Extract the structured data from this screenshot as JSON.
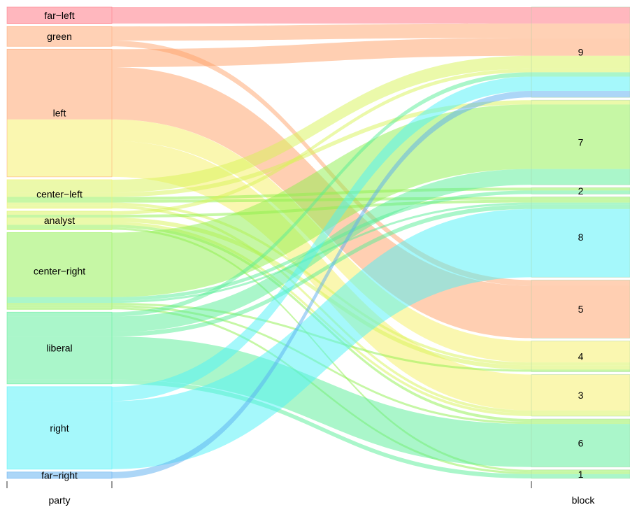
{
  "chart_data": {
    "type": "alluvial",
    "axes": [
      {
        "name": "party",
        "label": "party"
      },
      {
        "name": "block",
        "label": "block"
      }
    ],
    "party_order": [
      "far-left",
      "green",
      "left",
      "center-left",
      "analyst",
      "center-right",
      "liberal",
      "right",
      "far-right"
    ],
    "block_order": [
      "9",
      "7",
      "2",
      "8",
      "5",
      "4",
      "3",
      "6",
      "1"
    ],
    "colors": {
      "far-left": "#ff6f7d",
      "green": "#ffa36c",
      "left": "#ff9f65",
      "center-left": "#f6f062",
      "analyst": "#d7f456",
      "center-right": "#8eef4c",
      "liberal": "#55ed95",
      "right": "#4cf1f8",
      "far-right": "#5aaef0"
    },
    "flows": [
      {
        "party": "far-left",
        "block": "9",
        "value": 2.3,
        "color_group": "far-left"
      },
      {
        "party": "green",
        "block": "9",
        "value": 2.0,
        "color_group": "green"
      },
      {
        "party": "green",
        "block": "5",
        "value": 0.8,
        "color_group": "green"
      },
      {
        "party": "left",
        "block": "9",
        "value": 2.5,
        "color_group": "left"
      },
      {
        "party": "left",
        "block": "5",
        "value": 7.3,
        "color_group": "left"
      },
      {
        "party": "left",
        "block": "4",
        "value": 3.0,
        "color_group": "center-left"
      },
      {
        "party": "left",
        "block": "3",
        "value": 5.0,
        "color_group": "center-left"
      },
      {
        "party": "center-left",
        "block": "9",
        "value": 1.8,
        "color_group": "analyst"
      },
      {
        "party": "center-left",
        "block": "7",
        "value": 0.6,
        "color_group": "analyst"
      },
      {
        "party": "center-left",
        "block": "2",
        "value": 0.4,
        "color_group": "center-right"
      },
      {
        "party": "center-left",
        "block": "8",
        "value": 0.4,
        "color_group": "center-right"
      },
      {
        "party": "center-left",
        "block": "4",
        "value": 0.4,
        "color_group": "analyst"
      },
      {
        "party": "center-left",
        "block": "3",
        "value": 0.4,
        "color_group": "analyst"
      },
      {
        "party": "analyst",
        "block": "9",
        "value": 0.5,
        "color_group": "analyst"
      },
      {
        "party": "analyst",
        "block": "8",
        "value": 0.4,
        "color_group": "center-right"
      },
      {
        "party": "analyst",
        "block": "4",
        "value": 0.6,
        "color_group": "analyst"
      },
      {
        "party": "analyst",
        "block": "3",
        "value": 0.4,
        "color_group": "analyst"
      },
      {
        "party": "analyst",
        "block": "6",
        "value": 0.4,
        "color_group": "center-right"
      },
      {
        "party": "analyst",
        "block": "1",
        "value": 0.3,
        "color_group": "center-right"
      },
      {
        "party": "center-right",
        "block": "7",
        "value": 9.0,
        "color_group": "center-right"
      },
      {
        "party": "center-right",
        "block": "2",
        "value": 0.5,
        "color_group": "liberal"
      },
      {
        "party": "center-right",
        "block": "8",
        "value": 0.3,
        "color_group": "liberal"
      },
      {
        "party": "center-right",
        "block": "4",
        "value": 0.3,
        "color_group": "center-right"
      },
      {
        "party": "center-right",
        "block": "6",
        "value": 0.3,
        "color_group": "center-right"
      },
      {
        "party": "center-right",
        "block": "1",
        "value": 0.3,
        "color_group": "center-right"
      },
      {
        "party": "liberal",
        "block": "9",
        "value": 0.6,
        "color_group": "liberal"
      },
      {
        "party": "liberal",
        "block": "7",
        "value": 2.2,
        "color_group": "liberal"
      },
      {
        "party": "liberal",
        "block": "8",
        "value": 0.6,
        "color_group": "liberal"
      },
      {
        "party": "liberal",
        "block": "6",
        "value": 6.0,
        "color_group": "liberal"
      },
      {
        "party": "liberal",
        "block": "1",
        "value": 0.6,
        "color_group": "liberal"
      },
      {
        "party": "right",
        "block": "9",
        "value": 2.0,
        "color_group": "right"
      },
      {
        "party": "right",
        "block": "8",
        "value": 9.5,
        "color_group": "right"
      },
      {
        "party": "far-right",
        "block": "9",
        "value": 0.9,
        "color_group": "far-right"
      }
    ]
  }
}
